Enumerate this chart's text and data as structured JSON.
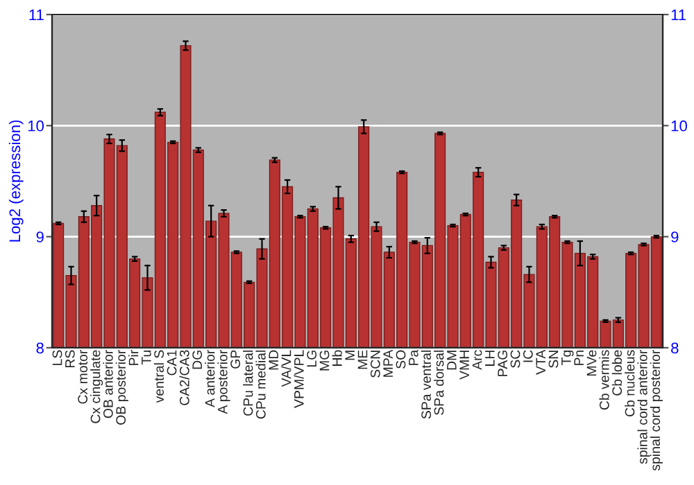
{
  "chart_data": {
    "type": "bar",
    "ylabel": "Log2 (expression)",
    "categories": [
      "LS",
      "RS",
      "Cx motor",
      "Cx cingulate",
      "OB anterior",
      "OB posterior",
      "Pir",
      "Tu",
      "ventral S",
      "CA1",
      "CA2/CA3",
      "DG",
      "A anterior",
      "A posterior",
      "GP",
      "CPu lateral",
      "CPu medial",
      "MD",
      "VA/VL",
      "VPM/VPL",
      "LG",
      "MG",
      "Hb",
      "M",
      "ME",
      "SCN",
      "MPA",
      "SO",
      "Pa",
      "SPa ventral",
      "SPa dorsal",
      "DM",
      "VMH",
      "Arc",
      "LH",
      "PAG",
      "SC",
      "IC",
      "VTA",
      "SN",
      "Tg",
      "Pn",
      "MVe",
      "Cb vermis",
      "Cb lobe",
      "Cb nucleus",
      "spinal cord anterior",
      "spinal cord posterior"
    ],
    "values": [
      9.12,
      8.65,
      9.18,
      9.28,
      9.88,
      9.82,
      8.8,
      8.63,
      10.12,
      9.85,
      10.72,
      9.78,
      9.14,
      9.21,
      8.86,
      8.59,
      8.89,
      9.69,
      9.45,
      9.18,
      9.25,
      9.08,
      9.35,
      8.98,
      9.99,
      9.09,
      8.86,
      9.58,
      8.95,
      8.92,
      9.93,
      9.1,
      9.2,
      9.58,
      8.77,
      8.9,
      9.33,
      8.66,
      9.09,
      9.18,
      8.95,
      8.85,
      8.82,
      8.24,
      8.25,
      8.85,
      8.93,
      9.0
    ],
    "errors": [
      0.01,
      0.08,
      0.05,
      0.09,
      0.04,
      0.05,
      0.02,
      0.11,
      0.03,
      0.01,
      0.04,
      0.02,
      0.14,
      0.03,
      0.01,
      0.01,
      0.09,
      0.02,
      0.06,
      0.01,
      0.02,
      0.01,
      0.1,
      0.03,
      0.06,
      0.04,
      0.05,
      0.01,
      0.01,
      0.07,
      0.01,
      0.01,
      0.01,
      0.04,
      0.05,
      0.02,
      0.05,
      0.07,
      0.02,
      0.01,
      0.01,
      0.11,
      0.02,
      0.01,
      0.02,
      0.01,
      0.01,
      0.01
    ],
    "color": "#b83232",
    "ylim": [
      8,
      11
    ],
    "yticks": [
      8,
      9,
      10,
      11
    ],
    "y2lim": [
      8,
      11
    ],
    "y2ticks": [
      8,
      9,
      10,
      11
    ],
    "grid": "y",
    "legend": false
  }
}
